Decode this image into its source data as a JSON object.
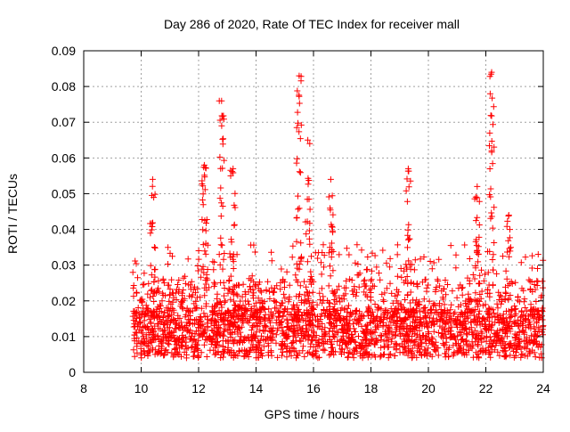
{
  "chart_data": {
    "type": "scatter",
    "title": "Day 286 of 2020, Rate Of TEC Index for receiver mall",
    "xlabel": "GPS time / hours",
    "ylabel": "ROTI / TECUs",
    "xlim": [
      8,
      24
    ],
    "ylim": [
      0,
      0.09
    ],
    "xticks": [
      8,
      10,
      12,
      14,
      16,
      18,
      20,
      22,
      24
    ],
    "yticks": [
      0,
      0.01,
      0.02,
      0.03,
      0.04,
      0.05,
      0.06,
      0.07,
      0.08,
      0.09
    ],
    "ytick_labels": [
      "0",
      "0.01",
      "0.02",
      "0.03",
      "0.04",
      "0.05",
      "0.06",
      "0.07",
      "0.08",
      "0.09"
    ],
    "grid": true,
    "marker": "+",
    "color": "#ff0000",
    "data_range_hours": [
      9.7,
      24
    ],
    "peaks": [
      {
        "x": 10.4,
        "y": 0.054
      },
      {
        "x": 12.2,
        "y": 0.058
      },
      {
        "x": 12.8,
        "y": 0.076
      },
      {
        "x": 13.2,
        "y": 0.057
      },
      {
        "x": 15.5,
        "y": 0.083
      },
      {
        "x": 15.8,
        "y": 0.065
      },
      {
        "x": 16.6,
        "y": 0.054
      },
      {
        "x": 19.3,
        "y": 0.057
      },
      {
        "x": 21.7,
        "y": 0.052
      },
      {
        "x": 22.2,
        "y": 0.084
      },
      {
        "x": 22.8,
        "y": 0.044
      }
    ]
  }
}
